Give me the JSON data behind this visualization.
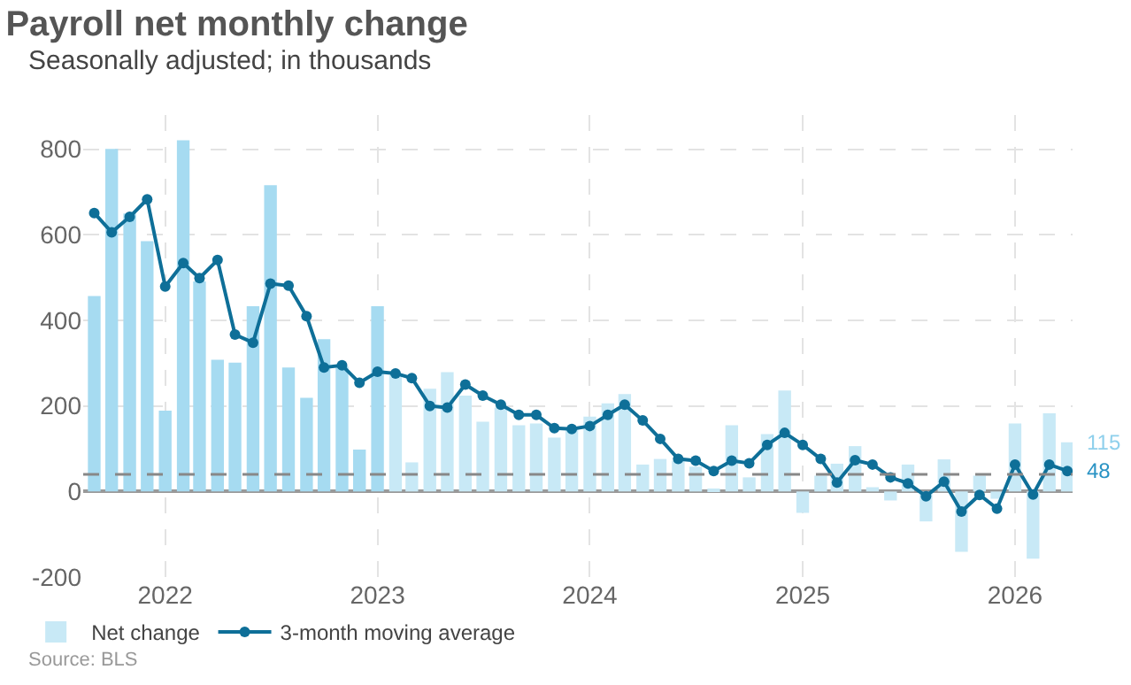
{
  "chart_data": {
    "type": "bar",
    "title": "Payroll net monthly change",
    "subtitle": "Seasonally adjusted; in thousands",
    "x": [
      "2021-09",
      "2021-10",
      "2021-11",
      "2021-12",
      "2022-01",
      "2022-02",
      "2022-03",
      "2022-04",
      "2022-05",
      "2022-06",
      "2022-07",
      "2022-08",
      "2022-09",
      "2022-10",
      "2022-11",
      "2022-12",
      "2023-01",
      "2023-02",
      "2023-03",
      "2023-04",
      "2023-05",
      "2023-06",
      "2023-07",
      "2023-08",
      "2023-09",
      "2023-10",
      "2023-11",
      "2023-12",
      "2024-01",
      "2024-02",
      "2024-03",
      "2024-04",
      "2024-05",
      "2024-06",
      "2024-07",
      "2024-08",
      "2024-09",
      "2024-10",
      "2024-11",
      "2024-12",
      "2025-01",
      "2025-02",
      "2025-03",
      "2025-04",
      "2025-05",
      "2025-06",
      "2025-07",
      "2025-08",
      "2025-09",
      "2025-10",
      "2025-11",
      "2025-12",
      "2026-01",
      "2026-02",
      "2026-03",
      "2026-04"
    ],
    "series": [
      {
        "name": "Net change",
        "type": "bar",
        "color": "#c8e9f6",
        "colors": [
          "#a6dbf1",
          "#a6dbf1",
          "#a6dbf1",
          "#a6dbf1",
          "#a6dbf1",
          "#a6dbf1",
          "#a6dbf1",
          "#a6dbf1",
          "#a6dbf1",
          "#a6dbf1",
          "#a6dbf1",
          "#a6dbf1",
          "#a6dbf1",
          "#a6dbf1",
          "#a6dbf1",
          "#a6dbf1",
          "#a6dbf1",
          "#c8e9f6",
          "#c8e9f6",
          "#c8e9f6",
          "#c8e9f6",
          "#c8e9f6",
          "#c8e9f6",
          "#c8e9f6",
          "#c8e9f6",
          "#c8e9f6",
          "#c8e9f6",
          "#c8e9f6",
          "#c8e9f6",
          "#c8e9f6",
          "#c8e9f6",
          "#c8e9f6",
          "#c8e9f6",
          "#c8e9f6",
          "#c8e9f6",
          "#c8e9f6",
          "#c8e9f6",
          "#c8e9f6",
          "#c8e9f6",
          "#c8e9f6",
          "#c8e9f6",
          "#c8e9f6",
          "#c8e9f6",
          "#c8e9f6",
          "#c8e9f6",
          "#c8e9f6",
          "#c8e9f6",
          "#c8e9f6",
          "#c8e9f6",
          "#c8e9f6",
          "#c8e9f6",
          "#c8e9f6",
          "#c8e9f6",
          "#c8e9f6",
          "#c8e9f6",
          "#c8e9f6"
        ],
        "values": [
          457,
          801,
          650,
          585,
          189,
          821,
          491,
          308,
          301,
          433,
          716,
          290,
          219,
          356,
          292,
          98,
          433,
          272,
          68,
          240,
          279,
          224,
          163,
          196,
          155,
          159,
          126,
          145,
          175,
          206,
          228,
          63,
          76,
          72,
          58,
          7,
          155,
          33,
          134,
          236,
          -50,
          37,
          65,
          106,
          10,
          -21,
          63,
          -70,
          75,
          -141,
          37,
          -17,
          159,
          -157,
          183,
          115
        ]
      },
      {
        "name": "3-month moving average",
        "type": "line",
        "color": "#0e6f98",
        "marker": "circle",
        "line_style": "solid",
        "values": [
          651,
          606,
          642,
          683,
          479,
          534,
          499,
          541,
          367,
          348,
          486,
          481,
          410,
          290,
          295,
          254,
          280,
          276,
          265,
          200,
          196,
          250,
          224,
          203,
          179,
          179,
          148,
          146,
          153,
          179,
          203,
          166,
          123,
          76,
          72,
          48,
          72,
          66,
          109,
          137,
          109,
          76,
          21,
          73,
          63,
          33,
          19,
          -11,
          23,
          -47,
          -8,
          -40,
          63,
          -7,
          63,
          48
        ]
      }
    ],
    "ref_lines": [
      {
        "axis": "y",
        "value": 40,
        "color": "#888888",
        "line_style": "dashed"
      }
    ],
    "annotations": [
      {
        "text": "115",
        "x": "2026-04",
        "y": 115
      },
      {
        "text": "48",
        "x": "2026-04",
        "y": 48
      },
      "Source: BLS"
    ],
    "xlim": [
      "2021-08-13",
      "2026-04-10"
    ],
    "xticks": [
      "2022",
      "2023",
      "2024",
      "2025",
      "2026"
    ],
    "ylim": [
      -200,
      880
    ],
    "yticks": [
      -200,
      0,
      200,
      400,
      600,
      800
    ],
    "grid": true,
    "legend": "bottom left"
  }
}
